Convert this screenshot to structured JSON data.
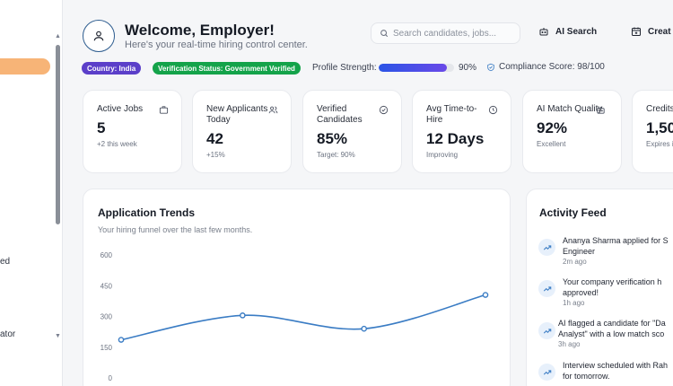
{
  "sidebar": {
    "items": [
      {
        "label": "ed"
      },
      {
        "label": "ator"
      }
    ]
  },
  "header": {
    "title": "Welcome, Employer!",
    "subtitle": "Here's your real-time hiring control center.",
    "search_placeholder": "Search candidates, jobs...",
    "ai_search_label": "AI Search",
    "create_label": "Creat"
  },
  "status": {
    "country": "Country: India",
    "verification": "Verification Status: Government Verified",
    "strength_label": "Profile Strength:",
    "strength_value": "90%",
    "strength_percent": 90,
    "compliance": "Compliance Score: 98/100"
  },
  "stats": [
    {
      "title": "Active Jobs",
      "value": "5",
      "sub": "+2 this week",
      "icon": "briefcase-icon"
    },
    {
      "title": "New Applicants Today",
      "value": "42",
      "sub": "+15%",
      "icon": "users-icon"
    },
    {
      "title": "Verified Candidates",
      "value": "85%",
      "sub": "Target: 90%",
      "icon": "check-circle-icon"
    },
    {
      "title": "Avg Time-to-Hire",
      "value": "12 Days",
      "sub": "Improving",
      "icon": "clock-icon"
    },
    {
      "title": "AI Match Quality",
      "value": "92%",
      "sub": "Excellent",
      "icon": "bot-icon"
    },
    {
      "title": "Credits",
      "value": "1,50",
      "sub": "Expires i",
      "icon": ""
    }
  ],
  "trends": {
    "title": "Application Trends",
    "subtitle": "Your hiring funnel over the last few months."
  },
  "chart_data": {
    "type": "line",
    "x": [
      0,
      1,
      2,
      3
    ],
    "values": [
      186,
      305,
      240,
      405
    ],
    "yticks": [
      0,
      150,
      300,
      450,
      600
    ],
    "ylim": [
      0,
      600
    ],
    "color": "#3a7cc4",
    "grid": false
  },
  "activity": {
    "title": "Activity Feed",
    "items": [
      {
        "line1": "Ananya Sharma applied for S",
        "line2": "Engineer",
        "time": "2m ago"
      },
      {
        "line1": "Your company verification h",
        "line2": "approved!",
        "time": "1h ago"
      },
      {
        "line1": "AI flagged a candidate for \"Da",
        "line2": "Analyst\" with a low match sco",
        "time": "3h ago"
      },
      {
        "line1": "Interview scheduled with Rah",
        "line2": "for tomorrow.",
        "time": ""
      }
    ]
  },
  "colors": {
    "accent": "#f7b477",
    "country_pill": "#5b3fc9",
    "verified_pill": "#14a34a",
    "line": "#3a7cc4"
  }
}
